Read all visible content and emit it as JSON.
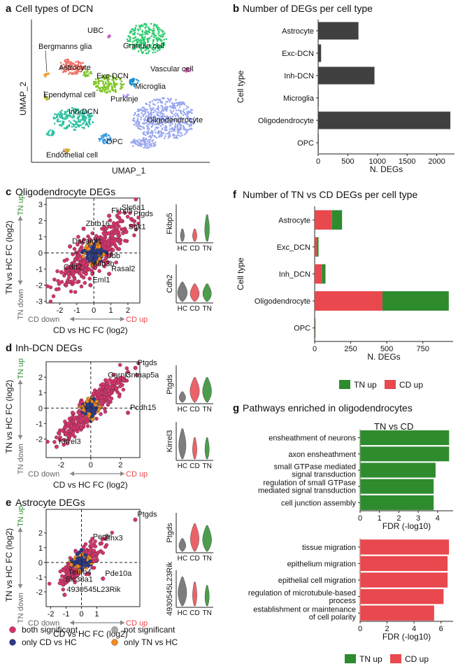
{
  "colors": {
    "tn": "#2e8b2e",
    "cd": "#e8484e",
    "bar": "#404040",
    "both": "#d6336c",
    "only_cd": "#2b3a8c",
    "only_tn": "#f28c1e",
    "ns": "#a9a9a9",
    "umap_granule": "#2ecc71",
    "umap_astro": "#f07167",
    "umap_exc": "#7cc524",
    "umap_inh": "#2bbfa0",
    "umap_oligo": "#9aa8f2",
    "umap_opc": "#3a9ae0",
    "umap_micro": "#1e90c8",
    "umap_purk": "#c6a0ff",
    "umap_vasc": "#e659c8",
    "umap_berg": "#f0a030",
    "umap_epen": "#b6b62c",
    "umap_endo": "#d4a838",
    "umap_ubc": "#c060c0"
  },
  "panel_a": {
    "letter": "a",
    "title": "Cell types of DCN",
    "xlabel": "UMAP_1",
    "ylabel": "UMAP_2",
    "clusters": [
      "UBC",
      "Bergmanns glia",
      "Granule cell",
      "Astrocyte",
      "Vascular cell",
      "Exc-DCN",
      "Microglia",
      "Ependymal cell",
      "Purkinje",
      "Inh-DCN",
      "Oligodendrocyte",
      "OPC",
      "Endothelial cell"
    ]
  },
  "chart_data": [
    {
      "id": "b",
      "type": "bar",
      "orientation": "horizontal",
      "title": "Number of DEGs per cell type",
      "letter": "b",
      "categories": [
        "Astrocyte",
        "Exc-DCN",
        "Inh-DCN",
        "Microglia",
        "Oligodendrocyte",
        "OPC"
      ],
      "values": [
        680,
        50,
        950,
        5,
        2230,
        5
      ],
      "xlabel": "N. DEGs",
      "ylabel": "Cell type",
      "xlim": [
        0,
        2300
      ],
      "xticks": [
        0,
        500,
        1000,
        1500,
        2000
      ],
      "xtick_labels": [
        "0",
        "500",
        "1000",
        "1500",
        "2000"
      ]
    },
    {
      "id": "c",
      "type": "scatter",
      "letter": "c",
      "title": "Oligodendrocyte DEGs",
      "xlabel": "CD vs HC  FC (log2)",
      "ylabel": "TN vs HC  FC (log2)",
      "xlim": [
        -2.8,
        2.7
      ],
      "ylim": [
        -3.1,
        3.4
      ],
      "xticks": [
        -2,
        -1,
        0,
        1,
        2
      ],
      "yticks": [
        -3,
        -2,
        -1,
        0,
        1,
        2,
        3
      ],
      "xtick_labels": [
        "-2",
        "-1",
        "0",
        "1",
        "2"
      ],
      "ytick_labels": [
        "-3",
        "-2",
        "-1",
        "0",
        "1",
        "2",
        "3"
      ],
      "arrow_x": {
        "left": "CD down",
        "right": "CD up"
      },
      "arrow_y": {
        "top": "TN up",
        "bottom": "TN down"
      },
      "labeled_genes": [
        {
          "gene": "Fkbp5",
          "x": 0.9,
          "y": 2.3
        },
        {
          "gene": "Slc6a1",
          "x": 1.5,
          "y": 2.5
        },
        {
          "gene": "Ptgds",
          "x": 2.2,
          "y": 2.1
        },
        {
          "gene": "Zbtb16",
          "x": -0.6,
          "y": 1.5
        },
        {
          "gene": "Sgk1",
          "x": 1.9,
          "y": 1.3
        },
        {
          "gene": "Dscaml1",
          "x": -1.4,
          "y": 0.4
        },
        {
          "gene": "Ubb",
          "x": 0.6,
          "y": -0.5
        },
        {
          "gene": "Cdh2",
          "x": -1.9,
          "y": -1.2
        },
        {
          "gene": "Mob3b",
          "x": -0.3,
          "y": -1.0
        },
        {
          "gene": "Rasal2",
          "x": 0.9,
          "y": -1.3
        },
        {
          "gene": "Eml1",
          "x": -0.2,
          "y": -2.0
        }
      ],
      "n_points": 420,
      "spread": [
        1.0,
        1.15
      ],
      "corr": 0.85
    },
    {
      "id": "d",
      "type": "scatter",
      "letter": "d",
      "title": "Inh-DCN DEGs",
      "xlabel": "CD vs HC  FC (log2)",
      "ylabel": "TN vs HC  FC (log2)",
      "xlim": [
        -3.0,
        3.3
      ],
      "ylim": [
        -3.2,
        3.0
      ],
      "xticks": [
        -2,
        0,
        2
      ],
      "yticks": [
        -2,
        -1,
        0,
        1,
        2
      ],
      "xtick_labels": [
        "-2",
        "0",
        "2"
      ],
      "ytick_labels": [
        "-2",
        "-1",
        "0",
        "1",
        "2"
      ],
      "arrow_x": {
        "left": "CD down",
        "right": "CD up"
      },
      "arrow_y": {
        "top": "TN up",
        "bottom": "TN down"
      },
      "labeled_genes": [
        {
          "gene": "Ptgds",
          "x": 3.0,
          "y": 2.6
        },
        {
          "gene": "Garnl3",
          "x": 1.0,
          "y": 1.8
        },
        {
          "gene": "Cntnap5a",
          "x": 2.2,
          "y": 1.8
        },
        {
          "gene": "Pcdh15",
          "x": 2.5,
          "y": -0.3
        },
        {
          "gene": "Kirrel3",
          "x": -2.3,
          "y": -2.5
        }
      ],
      "n_points": 420,
      "spread": [
        1.05,
        1.05
      ],
      "corr": 0.9
    },
    {
      "id": "e",
      "type": "scatter",
      "letter": "e",
      "title": "Astrocyte DEGs",
      "xlabel": "CD vs HC  FC (log2)",
      "ylabel": "TN vs HC  FC (log2)",
      "xlim": [
        -2.3,
        3.8
      ],
      "ylim": [
        -3.0,
        3.6
      ],
      "xticks": [
        -2,
        -1,
        0,
        1
      ],
      "yticks": [
        -2,
        -1,
        0,
        1,
        2
      ],
      "xtick_labels": [
        "-2",
        "-1",
        "0",
        "1"
      ],
      "ytick_labels": [
        "-2",
        "-1",
        "0",
        "1",
        "2"
      ],
      "arrow_x": {
        "left": "CD down",
        "right": "CD up"
      },
      "arrow_y": {
        "top": "TN up",
        "bottom": "TN down"
      },
      "labeled_genes": [
        {
          "gene": "Ptgds",
          "x": 3.5,
          "y": 2.9
        },
        {
          "gene": "Per3",
          "x": 0.6,
          "y": 1.4
        },
        {
          "gene": "Zfhx3",
          "x": 1.3,
          "y": 1.3
        },
        {
          "gene": "Tenm4",
          "x": -1.0,
          "y": -1.0
        },
        {
          "gene": "Slc38a1",
          "x": -1.2,
          "y": -1.5
        },
        {
          "gene": "Pde10a",
          "x": 1.4,
          "y": -1.1
        },
        {
          "gene": "4930545L23Rik",
          "x": -1.1,
          "y": -2.2
        }
      ],
      "n_points": 300,
      "spread": [
        0.65,
        0.7
      ],
      "corr": 0.8
    },
    {
      "id": "f",
      "type": "bar",
      "orientation": "horizontal",
      "stacked": true,
      "letter": "f",
      "title": "Number of TN vs CD DEGs per cell type",
      "categories": [
        "Astrocyte",
        "Exc_DCN",
        "Inh_DCN",
        "Oligodendrocyte",
        "OPC"
      ],
      "series": [
        {
          "name": "CD up",
          "values": [
            120,
            15,
            50,
            470,
            2
          ]
        },
        {
          "name": "TN up",
          "values": [
            70,
            12,
            25,
            460,
            2
          ]
        }
      ],
      "xlabel": "N. DEGs",
      "ylabel": "Cell type",
      "xlim": [
        0,
        960
      ],
      "xticks": [
        0,
        250,
        500,
        750
      ],
      "xtick_labels": [
        "0",
        "250",
        "500",
        "750"
      ],
      "legend": {
        "items": [
          "TN up",
          "CD up"
        ],
        "placement": "bottom"
      }
    },
    {
      "id": "g_tn",
      "type": "bar",
      "orientation": "horizontal",
      "letter": "g",
      "title": "Pathways enriched in oligodendrocytes",
      "subtitle": "TN vs CD",
      "categories": [
        [
          "ensheathment of neurons"
        ],
        [
          "axon ensheathment"
        ],
        [
          "small GTPase mediated",
          "signal transduction"
        ],
        [
          "regulation of small GTPase",
          "mediated signal transduction"
        ],
        [
          "cell junction assembly"
        ]
      ],
      "values": [
        4.6,
        4.6,
        3.9,
        3.8,
        3.8
      ],
      "xlabel": "FDR (-log10)",
      "xlim": [
        0,
        4.8
      ],
      "xticks": [
        0,
        1,
        2,
        3,
        4
      ],
      "xtick_labels": [
        "0",
        "1",
        "2",
        "3",
        "4"
      ],
      "series_name": "TN up"
    },
    {
      "id": "g_cd",
      "type": "bar",
      "orientation": "horizontal",
      "categories": [
        [
          "tissue migration"
        ],
        [
          "epithelium migration"
        ],
        [
          "epithelial cell migration"
        ],
        [
          "regulation of microtubule-based",
          "process"
        ],
        [
          "establishment or maintenance",
          "of cell polarity"
        ]
      ],
      "values": [
        6.6,
        6.5,
        6.5,
        6.2,
        5.5
      ],
      "xlabel": "FDR (-log10)",
      "xlim": [
        0,
        6.9
      ],
      "xticks": [
        0,
        2,
        4,
        6
      ],
      "xtick_labels": [
        "0",
        "2",
        "4",
        "6"
      ],
      "series_name": "CD up",
      "legend": {
        "items": [
          "TN up",
          "CD up"
        ],
        "placement": "bottom"
      }
    }
  ],
  "violins": [
    {
      "panel": "c",
      "gene": "Fkbp5",
      "groups": [
        "HC",
        "CD",
        "TN"
      ]
    },
    {
      "panel": "c",
      "gene": "Cdh2",
      "groups": [
        "HC",
        "CD",
        "TN"
      ]
    },
    {
      "panel": "d",
      "gene": "Ptgds",
      "groups": [
        "HC",
        "CD",
        "TN"
      ]
    },
    {
      "panel": "d",
      "gene": "Kirrel3",
      "groups": [
        "HC",
        "CD",
        "TN"
      ]
    },
    {
      "panel": "e",
      "gene": "Ptgds",
      "groups": [
        "HC",
        "CD",
        "TN"
      ]
    },
    {
      "panel": "e",
      "gene": "4930545L23Rik",
      "groups": [
        "HC",
        "CD",
        "TN"
      ]
    }
  ],
  "scatter_legend": [
    {
      "label": "both significant",
      "key": "both"
    },
    {
      "label": "not significant",
      "key": "ns"
    },
    {
      "label": "only CD vs HC",
      "key": "only_cd"
    },
    {
      "label": "only TN vs HC",
      "key": "only_tn"
    }
  ]
}
